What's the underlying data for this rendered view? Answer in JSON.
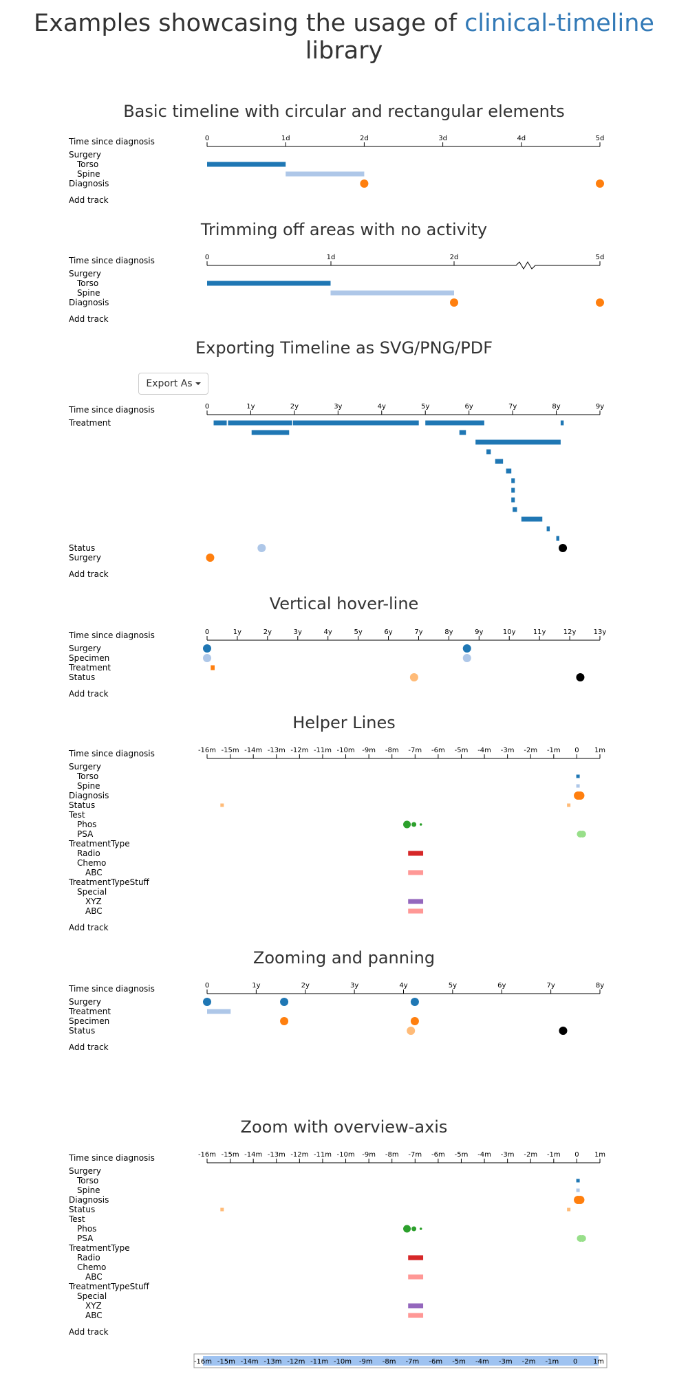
{
  "title": {
    "prefix": "Examples showcasing the usage of",
    "library": "clinical-timeline",
    "suffix": "library"
  },
  "colors": {
    "blue": "#1f77b4",
    "lightBlue": "#aec7e8",
    "orange": "#ff7f0e",
    "lightOrange": "#ffbb78",
    "green": "#2ca02c",
    "lightGreen": "#98df8a",
    "red": "#d62728",
    "pink": "#ff9896",
    "purple": "#9467bd",
    "black": "#000000",
    "link": "#337ab7"
  },
  "export": {
    "label": "Export As",
    "icon": "caret-down-icon"
  },
  "sections": [
    {
      "id": "basic",
      "title": "Basic timeline with circular and rectangular elements",
      "axis_label": "Time since diagnosis",
      "axis": {
        "unit": "d",
        "min": 0,
        "max": 5,
        "ticks": [
          "0",
          "1d",
          "2d",
          "3d",
          "4d",
          "5d"
        ]
      },
      "tracks": [
        {
          "label": "Surgery",
          "indent": 0
        },
        {
          "label": "Torso",
          "indent": 1
        },
        {
          "label": "Spine",
          "indent": 1
        },
        {
          "label": "Diagnosis",
          "indent": 0
        }
      ],
      "events": [
        {
          "track": 1,
          "type": "bar",
          "start": 0,
          "end": 1,
          "color": "blue"
        },
        {
          "track": 2,
          "type": "bar",
          "start": 1,
          "end": 2,
          "color": "lightBlue"
        },
        {
          "track": 3,
          "type": "dot",
          "time": 2,
          "color": "orange"
        },
        {
          "track": 3,
          "type": "dot",
          "time": 5,
          "color": "orange"
        }
      ],
      "add_track": "Add track"
    },
    {
      "id": "trim",
      "title": "Trimming off areas with no activity",
      "axis_label": "Time since diagnosis",
      "axis": {
        "unit": "d",
        "ticks": [
          "0",
          "1d",
          "2d",
          "5d"
        ],
        "break_between": [
          "2d",
          "5d"
        ]
      },
      "tracks": [
        {
          "label": "Surgery",
          "indent": 0
        },
        {
          "label": "Torso",
          "indent": 1
        },
        {
          "label": "Spine",
          "indent": 1
        },
        {
          "label": "Diagnosis",
          "indent": 0
        }
      ],
      "events": [
        {
          "track": 1,
          "type": "bar",
          "start": 0,
          "end": 1,
          "color": "blue"
        },
        {
          "track": 2,
          "type": "bar",
          "start": 1,
          "end": 2,
          "color": "lightBlue"
        },
        {
          "track": 3,
          "type": "dot",
          "time": 2,
          "color": "orange"
        },
        {
          "track": 3,
          "type": "dot",
          "time": 5,
          "color": "orange"
        }
      ],
      "add_track": "Add track"
    },
    {
      "id": "export",
      "title": "Exporting Timeline as SVG/PNG/PDF",
      "axis_label": "Time since diagnosis",
      "axis": {
        "unit": "y",
        "min": 0,
        "max": 9,
        "ticks": [
          "0",
          "1y",
          "2y",
          "3y",
          "4y",
          "5y",
          "6y",
          "7y",
          "8y",
          "9y"
        ]
      },
      "tracks": [
        {
          "label": "Treatment",
          "indent": 0,
          "rows": 13
        },
        {
          "label": "Status",
          "indent": 0
        },
        {
          "label": "Surgery",
          "indent": 0
        }
      ],
      "events": [
        {
          "track": 0,
          "row": 0,
          "type": "bar",
          "start": 0.15,
          "end": 0.45,
          "color": "blue"
        },
        {
          "track": 0,
          "row": 0,
          "type": "bar",
          "start": 0.48,
          "end": 1.95,
          "color": "blue"
        },
        {
          "track": 0,
          "row": 0,
          "type": "bar",
          "start": 1.97,
          "end": 4.85,
          "color": "blue"
        },
        {
          "track": 0,
          "row": 0,
          "type": "bar",
          "start": 5.0,
          "end": 6.35,
          "color": "blue"
        },
        {
          "track": 0,
          "row": 0,
          "type": "bar",
          "start": 8.1,
          "end": 8.17,
          "color": "blue"
        },
        {
          "track": 0,
          "row": 1,
          "type": "bar",
          "start": 1.02,
          "end": 1.88,
          "color": "blue"
        },
        {
          "track": 0,
          "row": 1,
          "type": "bar",
          "start": 5.78,
          "end": 5.93,
          "color": "blue"
        },
        {
          "track": 0,
          "row": 2,
          "type": "bar",
          "start": 6.15,
          "end": 8.1,
          "color": "blue"
        },
        {
          "track": 0,
          "row": 3,
          "type": "bar",
          "start": 6.4,
          "end": 6.5,
          "color": "blue"
        },
        {
          "track": 0,
          "row": 4,
          "type": "bar",
          "start": 6.6,
          "end": 6.78,
          "color": "blue"
        },
        {
          "track": 0,
          "row": 5,
          "type": "bar",
          "start": 6.85,
          "end": 6.97,
          "color": "blue"
        },
        {
          "track": 0,
          "row": 6,
          "type": "bar",
          "start": 6.97,
          "end": 7.05,
          "color": "blue"
        },
        {
          "track": 0,
          "row": 7,
          "type": "bar",
          "start": 6.97,
          "end": 7.05,
          "color": "blue"
        },
        {
          "track": 0,
          "row": 8,
          "type": "bar",
          "start": 6.97,
          "end": 7.05,
          "color": "blue"
        },
        {
          "track": 0,
          "row": 9,
          "type": "bar",
          "start": 7.0,
          "end": 7.1,
          "color": "blue"
        },
        {
          "track": 0,
          "row": 10,
          "type": "bar",
          "start": 7.2,
          "end": 7.68,
          "color": "blue"
        },
        {
          "track": 0,
          "row": 11,
          "type": "bar",
          "start": 7.78,
          "end": 7.85,
          "color": "blue"
        },
        {
          "track": 0,
          "row": 12,
          "type": "bar",
          "start": 8.0,
          "end": 8.07,
          "color": "blue"
        },
        {
          "track": 1,
          "type": "dot",
          "time": 1.25,
          "color": "lightBlue"
        },
        {
          "track": 1,
          "type": "dot",
          "time": 8.15,
          "color": "black"
        },
        {
          "track": 2,
          "type": "dot",
          "time": 0.07,
          "color": "orange"
        }
      ],
      "add_track": "Add track"
    },
    {
      "id": "hover",
      "title": "Vertical hover-line",
      "axis_label": "Time since diagnosis",
      "axis": {
        "unit": "y",
        "min": 0,
        "max": 13,
        "ticks": [
          "0",
          "1y",
          "2y",
          "3y",
          "4y",
          "5y",
          "6y",
          "7y",
          "8y",
          "9y",
          "10y",
          "11y",
          "12y",
          "13y"
        ]
      },
      "tracks": [
        {
          "label": "Surgery",
          "indent": 0
        },
        {
          "label": "Specimen",
          "indent": 0
        },
        {
          "label": "Treatment",
          "indent": 0
        },
        {
          "label": "Status",
          "indent": 0
        }
      ],
      "events": [
        {
          "track": 0,
          "type": "dot",
          "time": 0,
          "color": "blue"
        },
        {
          "track": 0,
          "type": "dot",
          "time": 8.6,
          "color": "blue"
        },
        {
          "track": 1,
          "type": "dot",
          "time": 0,
          "color": "lightBlue"
        },
        {
          "track": 1,
          "type": "dot",
          "time": 8.6,
          "color": "lightBlue"
        },
        {
          "track": 2,
          "type": "bar",
          "start": 0.12,
          "end": 0.25,
          "color": "orange"
        },
        {
          "track": 3,
          "type": "dot",
          "time": 6.85,
          "color": "lightOrange"
        },
        {
          "track": 3,
          "type": "dot",
          "time": 12.35,
          "color": "black"
        }
      ],
      "add_track": "Add track"
    },
    {
      "id": "helper",
      "title": "Helper Lines",
      "axis_label": "Time since diagnosis",
      "axis": {
        "unit": "m",
        "min": -16,
        "max": 1,
        "ticks": [
          "-16m",
          "-15m",
          "-14m",
          "-13m",
          "-12m",
          "-11m",
          "-10m",
          "-9m",
          "-8m",
          "-7m",
          "-6m",
          "-5m",
          "-4m",
          "-3m",
          "-2m",
          "-1m",
          "0",
          "1m"
        ]
      },
      "tracks": [
        {
          "label": "Surgery",
          "indent": 0
        },
        {
          "label": "Torso",
          "indent": 1
        },
        {
          "label": "Spine",
          "indent": 1
        },
        {
          "label": "Diagnosis",
          "indent": 0
        },
        {
          "label": "Status",
          "indent": 0
        },
        {
          "label": "Test",
          "indent": 0
        },
        {
          "label": "Phos",
          "indent": 1
        },
        {
          "label": "PSA",
          "indent": 1
        },
        {
          "label": "TreatmentType",
          "indent": 0
        },
        {
          "label": "Radio",
          "indent": 1
        },
        {
          "label": "Chemo",
          "indent": 1
        },
        {
          "label": "ABC",
          "indent": 2
        },
        {
          "label": "TreatmentTypeStuff",
          "indent": 0
        },
        {
          "label": "Special",
          "indent": 1
        },
        {
          "label": "XYZ",
          "indent": 2
        },
        {
          "label": "ABC",
          "indent": 2
        }
      ],
      "events": [
        {
          "track": 1,
          "type": "sq",
          "time": 0.05,
          "size": 5,
          "color": "blue"
        },
        {
          "track": 2,
          "type": "sq",
          "time": 0.05,
          "size": 5,
          "color": "lightBlue"
        },
        {
          "track": 3,
          "type": "dot",
          "time": 0.05,
          "color": "orange"
        },
        {
          "track": 3,
          "type": "dot",
          "time": 0.15,
          "color": "orange"
        },
        {
          "track": 4,
          "type": "sq",
          "time": -15.35,
          "size": 5,
          "color": "lightOrange"
        },
        {
          "track": 4,
          "type": "sq",
          "time": -0.35,
          "size": 5,
          "color": "lightOrange"
        },
        {
          "track": 6,
          "type": "dot",
          "time": -7.35,
          "r": 5.5,
          "color": "green"
        },
        {
          "track": 6,
          "type": "dot",
          "time": -7.05,
          "r": 3.5,
          "color": "green"
        },
        {
          "track": 6,
          "type": "dot",
          "time": -6.75,
          "r": 1.8,
          "color": "green"
        },
        {
          "track": 7,
          "type": "dot",
          "time": 0.15,
          "r": 5,
          "color": "lightGreen"
        },
        {
          "track": 7,
          "type": "dot",
          "time": 0.25,
          "r": 5,
          "color": "lightGreen"
        },
        {
          "track": 9,
          "type": "bar",
          "start": -7.3,
          "end": -6.65,
          "color": "red"
        },
        {
          "track": 11,
          "type": "bar",
          "start": -7.3,
          "end": -6.65,
          "color": "pink"
        },
        {
          "track": 14,
          "type": "bar",
          "start": -7.3,
          "end": -6.65,
          "color": "purple"
        },
        {
          "track": 15,
          "type": "bar",
          "start": -7.3,
          "end": -6.65,
          "color": "pink"
        }
      ],
      "add_track": "Add track"
    },
    {
      "id": "zoom",
      "title": "Zooming and panning",
      "axis_label": "Time since diagnosis",
      "axis": {
        "unit": "y",
        "min": 0,
        "max": 8,
        "ticks": [
          "0",
          "1y",
          "2y",
          "3y",
          "4y",
          "5y",
          "6y",
          "7y",
          "8y"
        ]
      },
      "tracks": [
        {
          "label": "Surgery",
          "indent": 0
        },
        {
          "label": "Treatment",
          "indent": 0
        },
        {
          "label": "Specimen",
          "indent": 0
        },
        {
          "label": "Status",
          "indent": 0
        }
      ],
      "events": [
        {
          "track": 0,
          "type": "dot",
          "time": 0,
          "color": "blue"
        },
        {
          "track": 0,
          "type": "dot",
          "time": 1.57,
          "color": "blue"
        },
        {
          "track": 0,
          "type": "dot",
          "time": 4.23,
          "color": "blue"
        },
        {
          "track": 1,
          "type": "bar",
          "start": 0,
          "end": 0.48,
          "color": "lightBlue"
        },
        {
          "track": 2,
          "type": "dot",
          "time": 1.57,
          "color": "orange"
        },
        {
          "track": 2,
          "type": "dot",
          "time": 4.23,
          "color": "orange"
        },
        {
          "track": 3,
          "type": "dot",
          "time": 4.15,
          "color": "lightOrange"
        },
        {
          "track": 3,
          "type": "dot",
          "time": 7.25,
          "color": "black"
        }
      ],
      "add_track": "Add track"
    },
    {
      "id": "overview",
      "title": "Zoom with overview-axis",
      "axis_label": "Time since diagnosis",
      "axis": {
        "unit": "m",
        "min": -16,
        "max": 1,
        "ticks": [
          "-16m",
          "-15m",
          "-14m",
          "-13m",
          "-12m",
          "-11m",
          "-10m",
          "-9m",
          "-8m",
          "-7m",
          "-6m",
          "-5m",
          "-4m",
          "-3m",
          "-2m",
          "-1m",
          "0",
          "1m"
        ]
      },
      "tracks": [
        {
          "label": "Surgery",
          "indent": 0
        },
        {
          "label": "Torso",
          "indent": 1
        },
        {
          "label": "Spine",
          "indent": 1
        },
        {
          "label": "Diagnosis",
          "indent": 0
        },
        {
          "label": "Status",
          "indent": 0
        },
        {
          "label": "Test",
          "indent": 0
        },
        {
          "label": "Phos",
          "indent": 1
        },
        {
          "label": "PSA",
          "indent": 1
        },
        {
          "label": "TreatmentType",
          "indent": 0
        },
        {
          "label": "Radio",
          "indent": 1
        },
        {
          "label": "Chemo",
          "indent": 1
        },
        {
          "label": "ABC",
          "indent": 2
        },
        {
          "label": "TreatmentTypeStuff",
          "indent": 0
        },
        {
          "label": "Special",
          "indent": 1
        },
        {
          "label": "XYZ",
          "indent": 2
        },
        {
          "label": "ABC",
          "indent": 2
        }
      ],
      "events": [
        {
          "track": 1,
          "type": "sq",
          "time": 0.05,
          "size": 5,
          "color": "blue"
        },
        {
          "track": 2,
          "type": "sq",
          "time": 0.05,
          "size": 5,
          "color": "lightBlue"
        },
        {
          "track": 3,
          "type": "dot",
          "time": 0.05,
          "color": "orange"
        },
        {
          "track": 3,
          "type": "dot",
          "time": 0.15,
          "color": "orange"
        },
        {
          "track": 4,
          "type": "sq",
          "time": -15.35,
          "size": 5,
          "color": "lightOrange"
        },
        {
          "track": 4,
          "type": "sq",
          "time": -0.35,
          "size": 5,
          "color": "lightOrange"
        },
        {
          "track": 6,
          "type": "dot",
          "time": -7.35,
          "r": 5.5,
          "color": "green"
        },
        {
          "track": 6,
          "type": "dot",
          "time": -7.05,
          "r": 3.5,
          "color": "green"
        },
        {
          "track": 6,
          "type": "dot",
          "time": -6.75,
          "r": 1.8,
          "color": "green"
        },
        {
          "track": 7,
          "type": "dot",
          "time": 0.15,
          "r": 5,
          "color": "lightGreen"
        },
        {
          "track": 7,
          "type": "dot",
          "time": 0.25,
          "r": 5,
          "color": "lightGreen"
        },
        {
          "track": 9,
          "type": "bar",
          "start": -7.3,
          "end": -6.65,
          "color": "red"
        },
        {
          "track": 11,
          "type": "bar",
          "start": -7.3,
          "end": -6.65,
          "color": "pink"
        },
        {
          "track": 14,
          "type": "bar",
          "start": -7.3,
          "end": -6.65,
          "color": "purple"
        },
        {
          "track": 15,
          "type": "bar",
          "start": -7.3,
          "end": -6.65,
          "color": "pink"
        }
      ],
      "add_track": "Add track",
      "overview": {
        "ticks": [
          "-16m",
          "-15m",
          "-14m",
          "-13m",
          "-12m",
          "-11m",
          "-10m",
          "-9m",
          "-8m",
          "-7m",
          "-6m",
          "-5m",
          "-4m",
          "-3m",
          "-2m",
          "-1m",
          "0",
          "1m"
        ]
      }
    }
  ]
}
